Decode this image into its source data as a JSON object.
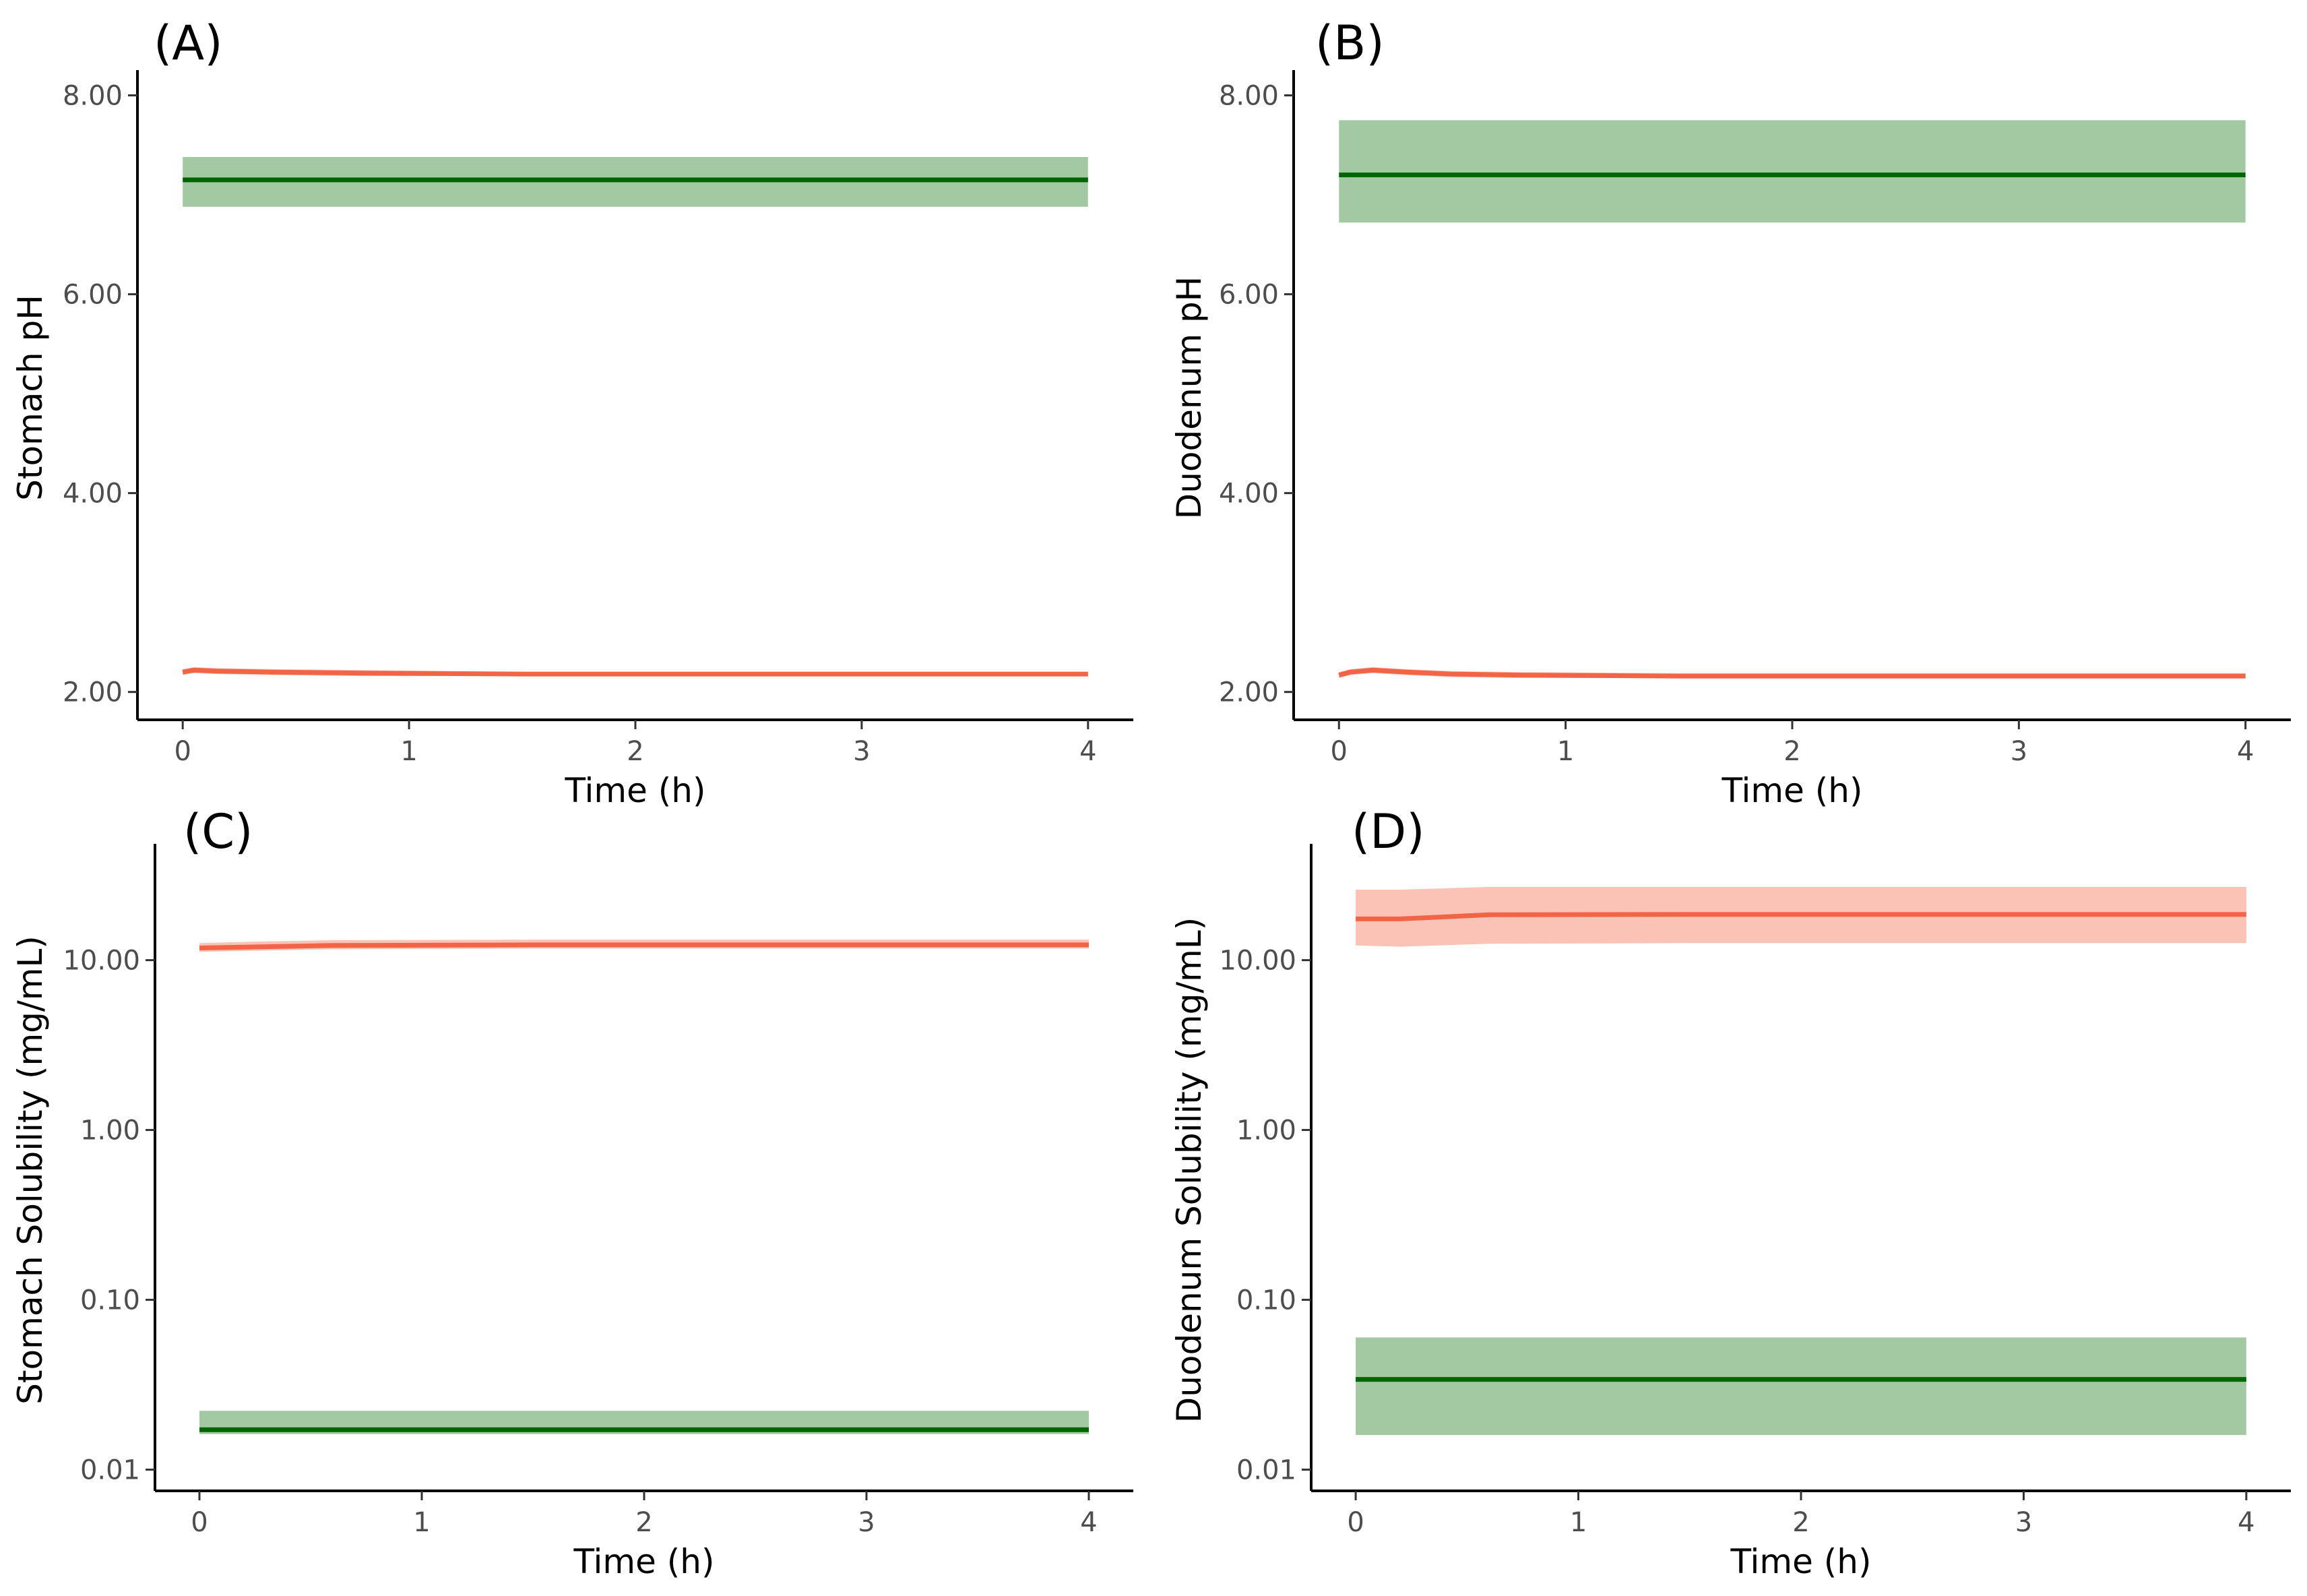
{
  "chart_data": [
    {
      "type": "line",
      "panel_label": "(A)",
      "xlabel": "Time (h)",
      "ylabel": "Stomach pH",
      "yscale": "linear",
      "xlim": [
        -0.2,
        4.2
      ],
      "ylim": [
        1.72,
        8.2
      ],
      "xticks": [
        0,
        1,
        2,
        3,
        4
      ],
      "xtick_labels": [
        "0",
        "1",
        "2",
        "3",
        "4"
      ],
      "yticks": [
        2,
        4,
        6,
        8
      ],
      "ytick_labels": [
        "2.00",
        "4.00",
        "6.00",
        "8.00"
      ],
      "series": [
        {
          "name": "green",
          "color": "#006400",
          "band_color": "#a3c9a3",
          "x": [
            0,
            4
          ],
          "y": [
            7.15,
            7.15
          ],
          "lower": [
            6.88,
            6.88
          ],
          "upper": [
            7.38,
            7.38
          ]
        },
        {
          "name": "red",
          "color": "#f26446",
          "band_color": "#fbc2b6",
          "x": [
            0,
            0.05,
            0.15,
            0.4,
            0.8,
            1.5,
            4
          ],
          "y": [
            2.2,
            2.22,
            2.21,
            2.2,
            2.19,
            2.18,
            2.18
          ],
          "lower": [
            2.17,
            2.19,
            2.18,
            2.17,
            2.16,
            2.16,
            2.16
          ],
          "upper": [
            2.23,
            2.25,
            2.24,
            2.23,
            2.22,
            2.2,
            2.2
          ]
        }
      ]
    },
    {
      "type": "line",
      "panel_label": "(B)",
      "xlabel": "Time (h)",
      "ylabel": "Duodenum pH",
      "yscale": "linear",
      "xlim": [
        -0.2,
        4.2
      ],
      "ylim": [
        1.72,
        8.2
      ],
      "xticks": [
        0,
        1,
        2,
        3,
        4
      ],
      "xtick_labels": [
        "0",
        "1",
        "2",
        "3",
        "4"
      ],
      "yticks": [
        2,
        4,
        6,
        8
      ],
      "ytick_labels": [
        "2.00",
        "4.00",
        "6.00",
        "8.00"
      ],
      "series": [
        {
          "name": "green",
          "color": "#006400",
          "band_color": "#a3c9a3",
          "x": [
            0,
            4
          ],
          "y": [
            7.2,
            7.2
          ],
          "lower": [
            6.72,
            6.72
          ],
          "upper": [
            7.75,
            7.75
          ]
        },
        {
          "name": "red",
          "color": "#f26446",
          "band_color": "#fbc2b6",
          "x": [
            0,
            0.05,
            0.15,
            0.3,
            0.5,
            0.8,
            1.5,
            4
          ],
          "y": [
            2.17,
            2.2,
            2.22,
            2.2,
            2.18,
            2.17,
            2.16,
            2.16
          ],
          "lower": [
            2.14,
            2.17,
            2.19,
            2.17,
            2.15,
            2.14,
            2.14,
            2.14
          ],
          "upper": [
            2.2,
            2.23,
            2.25,
            2.23,
            2.21,
            2.2,
            2.19,
            2.19
          ]
        }
      ]
    },
    {
      "type": "line",
      "panel_label": "(C)",
      "xlabel": "Time (h)",
      "ylabel": "Stomach Solubility (mg/mL)",
      "yscale": "log",
      "xlim": [
        -0.2,
        4.2
      ],
      "ylim": [
        0.0075,
        45
      ],
      "xticks": [
        0,
        1,
        2,
        3,
        4
      ],
      "xtick_labels": [
        "0",
        "1",
        "2",
        "3",
        "4"
      ],
      "yticks": [
        0.01,
        0.1,
        1,
        10
      ],
      "ytick_labels": [
        "0.01",
        "0.10",
        "1.00",
        "10.00"
      ],
      "series": [
        {
          "name": "red",
          "color": "#f26446",
          "band_color": "#fbc2b6",
          "x": [
            0,
            0.3,
            0.6,
            1.5,
            4
          ],
          "y": [
            11.8,
            12.0,
            12.2,
            12.3,
            12.3
          ],
          "lower": [
            11.2,
            11.4,
            11.6,
            11.7,
            11.7
          ],
          "upper": [
            12.6,
            12.9,
            13.1,
            13.2,
            13.2
          ]
        },
        {
          "name": "green",
          "color": "#006400",
          "band_color": "#a3c9a3",
          "x": [
            0,
            4
          ],
          "y": [
            0.0172,
            0.0172
          ],
          "lower": [
            0.0162,
            0.0162
          ],
          "upper": [
            0.0222,
            0.0222
          ]
        }
      ]
    },
    {
      "type": "line",
      "panel_label": "(D)",
      "xlabel": "Time (h)",
      "ylabel": "Duodenum Solubility (mg/mL)",
      "yscale": "log",
      "xlim": [
        -0.2,
        4.2
      ],
      "ylim": [
        0.0075,
        45
      ],
      "xticks": [
        0,
        1,
        2,
        3,
        4
      ],
      "xtick_labels": [
        "0",
        "1",
        "2",
        "3",
        "4"
      ],
      "yticks": [
        0.01,
        0.1,
        1,
        10
      ],
      "ytick_labels": [
        "0.01",
        "0.10",
        "1.00",
        "10.00"
      ],
      "series": [
        {
          "name": "red",
          "color": "#f26446",
          "band_color": "#fbc2b6",
          "x": [
            0,
            0.2,
            0.6,
            1.5,
            4
          ],
          "y": [
            17.5,
            17.5,
            18.5,
            18.6,
            18.6
          ],
          "lower": [
            12.2,
            12.0,
            12.5,
            12.6,
            12.6
          ],
          "upper": [
            26.0,
            26.0,
            27.0,
            27.0,
            27.0
          ]
        },
        {
          "name": "green",
          "color": "#006400",
          "band_color": "#a3c9a3",
          "x": [
            0,
            4
          ],
          "y": [
            0.034,
            0.034
          ],
          "lower": [
            0.016,
            0.016
          ],
          "upper": [
            0.06,
            0.06
          ]
        }
      ]
    }
  ]
}
